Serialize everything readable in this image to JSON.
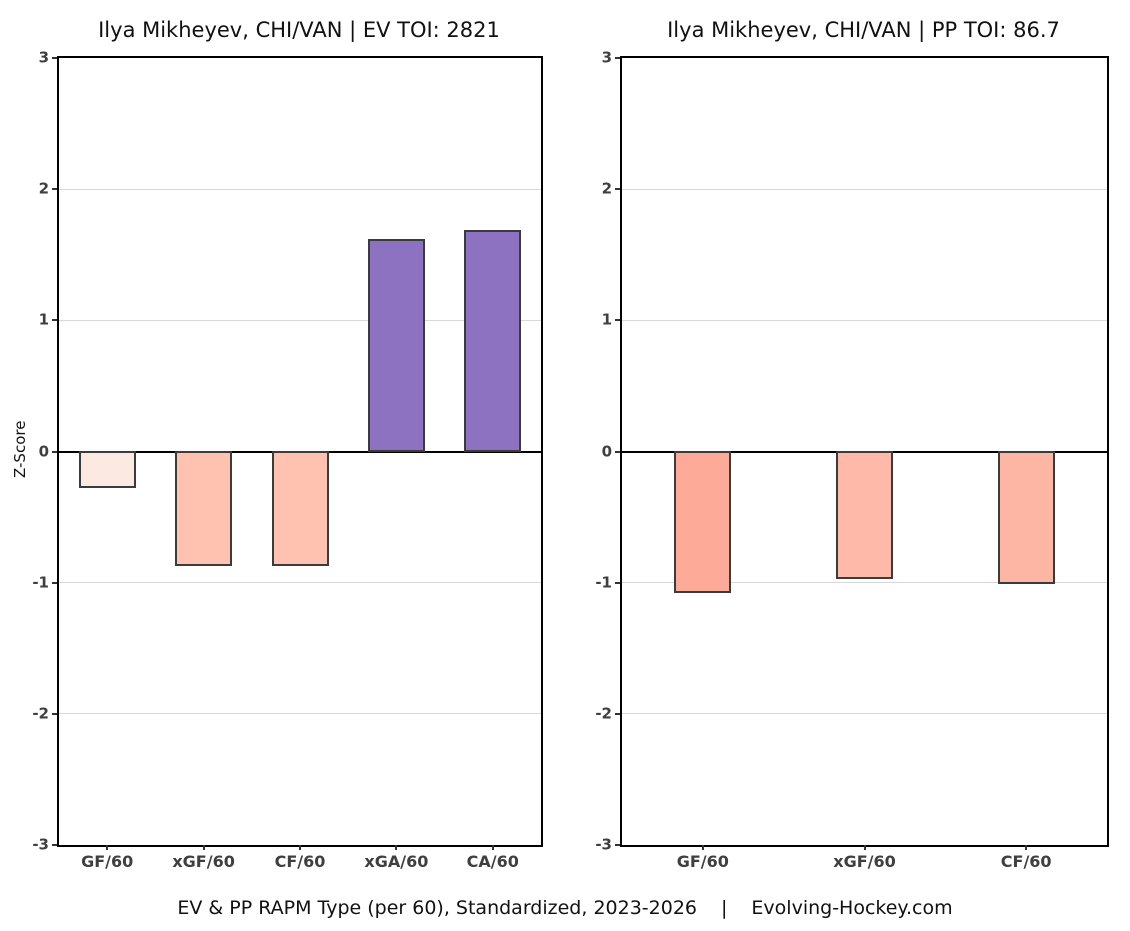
{
  "style": {
    "background": "#ffffff",
    "axis_color": "#000000",
    "grid_color": "#d8d8d8",
    "zero_line_color": "#000000",
    "tick_mark_color": "#333333",
    "tick_label_color": "#3f3f3f",
    "bar_border_color": "#3b3b3b"
  },
  "chart_data": [
    {
      "type": "bar",
      "title": "Ilya Mikheyev, CHI/VAN  |  EV TOI: 2821",
      "ylabel": "Z-Score",
      "ylim": [
        -3,
        3
      ],
      "yticks": [
        3,
        2,
        1,
        0,
        -1,
        -2,
        -3
      ],
      "grid": true,
      "legend": false,
      "categories": [
        "GF/60",
        "xGF/60",
        "CF/60",
        "xGA/60",
        "CA/60"
      ],
      "values": [
        -0.28,
        -0.87,
        -0.87,
        1.62,
        1.69
      ],
      "bar_colors": [
        "#fce9e2",
        "#ffc2b1",
        "#ffc2b1",
        "#8c72c0",
        "#8c72c0"
      ]
    },
    {
      "type": "bar",
      "title": "Ilya Mikheyev, CHI/VAN  |  PP TOI: 86.7",
      "ylabel": "",
      "ylim": [
        -3,
        3
      ],
      "yticks": [
        3,
        2,
        1,
        0,
        -1,
        -2,
        -3
      ],
      "grid": true,
      "legend": false,
      "categories": [
        "GF/60",
        "xGF/60",
        "CF/60"
      ],
      "values": [
        -1.08,
        -0.97,
        -1.01
      ],
      "bar_colors": [
        "#fdab98",
        "#feb9a8",
        "#feb6a4"
      ]
    }
  ],
  "caption": {
    "left": "EV & PP RAPM Type (per 60), Standardized, 2023-2026",
    "separator": "|",
    "right": "Evolving-Hockey.com"
  }
}
